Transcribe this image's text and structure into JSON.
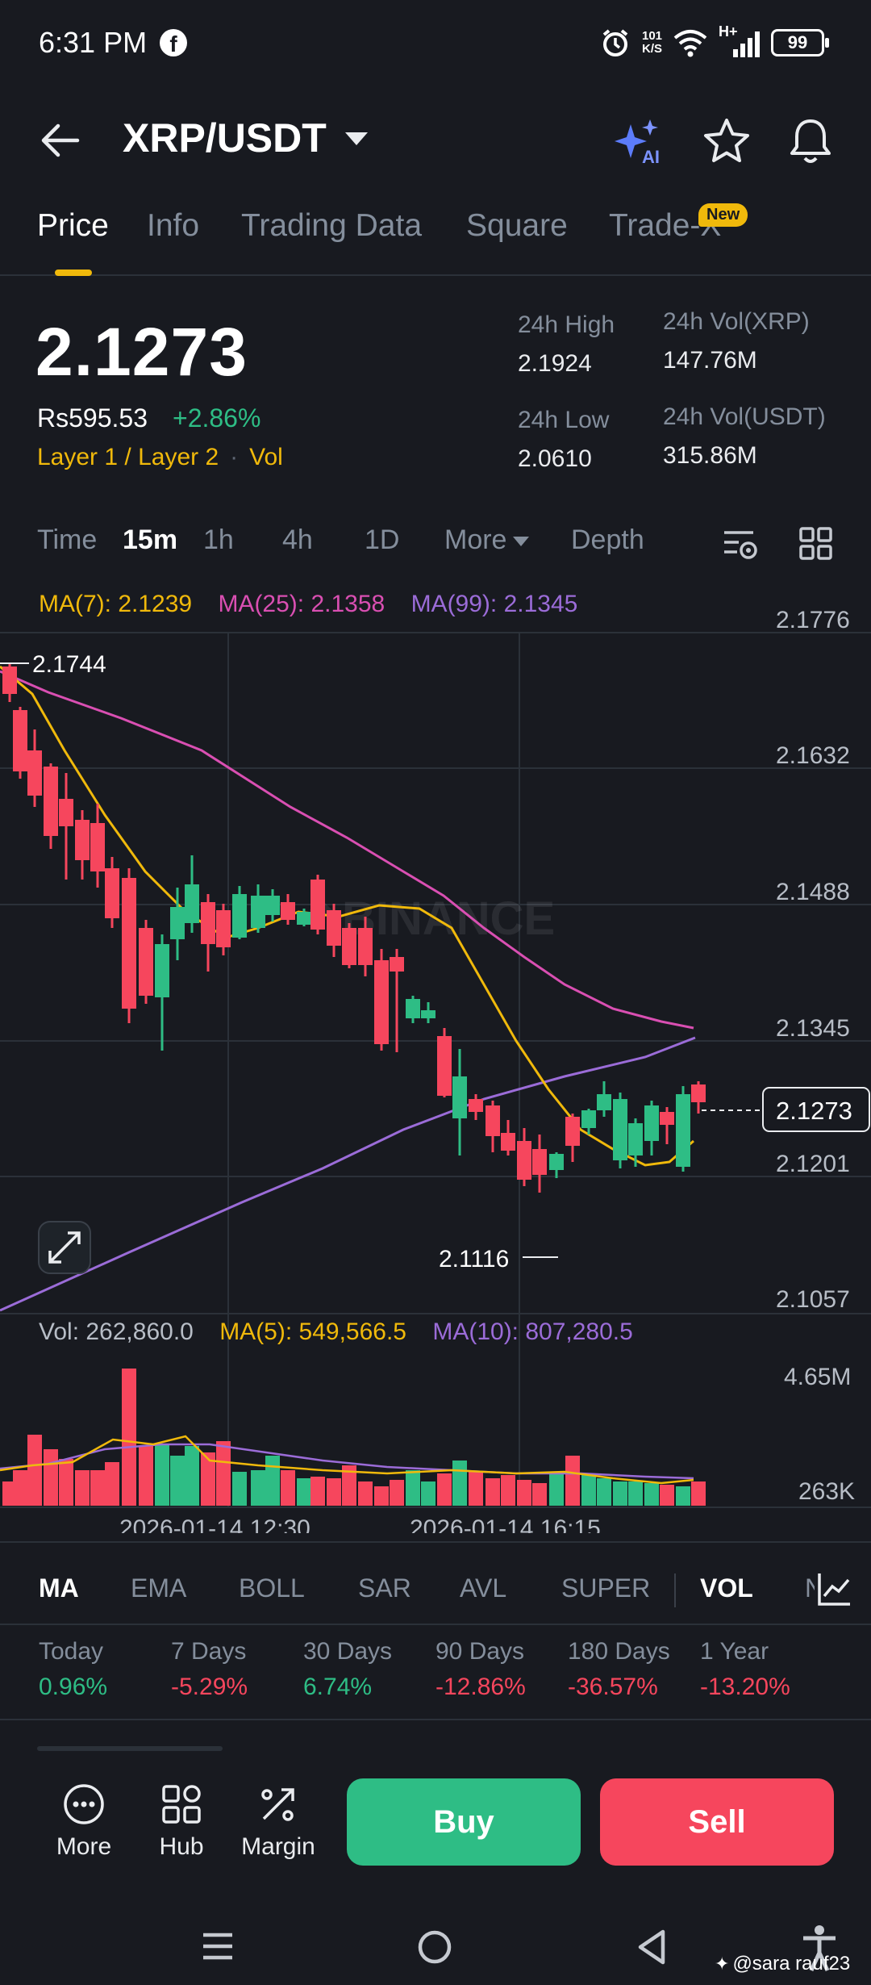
{
  "status_bar": {
    "time": "6:31 PM",
    "fb": "f",
    "net_rate_top": "101",
    "net_rate_bottom": "K/S",
    "net_type": "H+",
    "battery": "99"
  },
  "header": {
    "pair": "XRP/USDT",
    "ai_label": "AI"
  },
  "tabs": [
    {
      "label": "Price"
    },
    {
      "label": "Info"
    },
    {
      "label": "Trading Data"
    },
    {
      "label": "Square"
    },
    {
      "label": "Trade-X"
    }
  ],
  "new_badge": "New",
  "ticker": {
    "price": "2.1273",
    "local_price": "Rs595.53",
    "change": "+2.86%",
    "tag1": "Layer 1 / Layer 2",
    "tag2": "Vol",
    "high_label": "24h High",
    "high": "2.1924",
    "low_label": "24h Low",
    "low": "2.0610",
    "vol_base_label": "24h Vol(XRP)",
    "vol_base": "147.76M",
    "vol_quote_label": "24h Vol(USDT)",
    "vol_quote": "315.86M"
  },
  "timeframes": [
    "Time",
    "15m",
    "1h",
    "4h",
    "1D",
    "More",
    "Depth"
  ],
  "ma_legend": {
    "ma7": "MA(7): 2.1239",
    "ma25": "MA(25): 2.1358",
    "ma99": "MA(99): 2.1345"
  },
  "chart_data": {
    "type": "candlestick",
    "y_ticks": [
      "2.1776",
      "2.1632",
      "2.1488",
      "2.1345",
      "2.1201",
      "2.1057"
    ],
    "high_marker": "2.1744",
    "low_marker": "2.1116",
    "last_price": "2.1273",
    "watermark": "BINANCE",
    "x_labels": [
      "2026-01-14 12:30",
      "2026-01-14 16:15"
    ],
    "vol_ticks": [
      "4.65M",
      "263K"
    ],
    "colors": {
      "up": "#2ebd85",
      "down": "#f6465d",
      "ma7": "#f0b90b",
      "ma25": "#d94fb2",
      "ma99": "#9b6cd8"
    }
  },
  "vol_legend": {
    "vol": "Vol: 262,860.0",
    "ma5": "MA(5): 549,566.5",
    "ma10": "MA(10): 807,280.5"
  },
  "indicators": [
    "MA",
    "EMA",
    "BOLL",
    "SAR",
    "AVL",
    "SUPER",
    "VOL",
    "N"
  ],
  "performance": [
    {
      "label": "Today",
      "value": "0.96%",
      "dir": "up"
    },
    {
      "label": "7 Days",
      "value": "-5.29%",
      "dir": "down"
    },
    {
      "label": "30 Days",
      "value": "6.74%",
      "dir": "up"
    },
    {
      "label": "90 Days",
      "value": "-12.86%",
      "dir": "down"
    },
    {
      "label": "180 Days",
      "value": "-36.57%",
      "dir": "down"
    },
    {
      "label": "1 Year",
      "value": "-13.20%",
      "dir": "down"
    }
  ],
  "bottom": {
    "more": "More",
    "hub": "Hub",
    "margin": "Margin",
    "buy": "Buy",
    "sell": "Sell"
  },
  "watermark": "@sara rauf23"
}
